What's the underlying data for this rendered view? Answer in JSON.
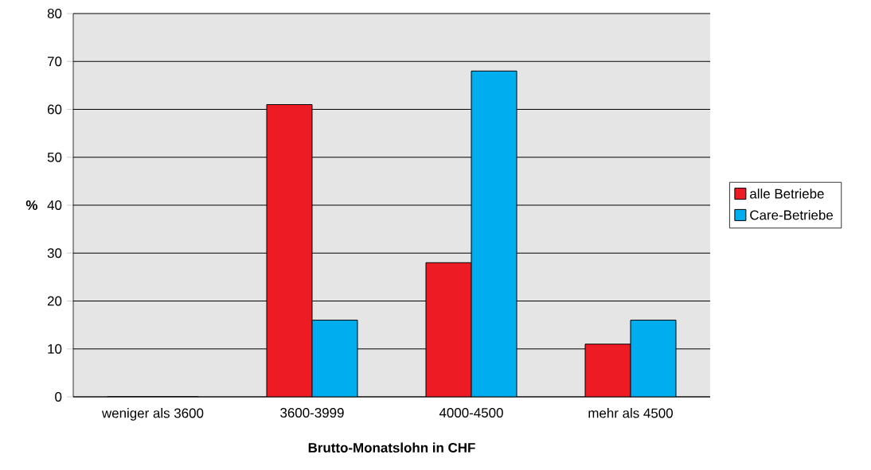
{
  "chart_data": {
    "type": "bar",
    "xlabel": "Brutto-Monatslohn in CHF",
    "ylabel": "%",
    "categories": [
      "weniger als 3600",
      "3600-3999",
      "4000-4500",
      "mehr als 4500"
    ],
    "series": [
      {
        "name": "alle Betriebe",
        "color": "#ed1c24",
        "values": [
          0,
          61,
          28,
          11
        ]
      },
      {
        "name": "Care-Betriebe",
        "color": "#00aeef",
        "values": [
          0,
          16,
          68,
          16
        ]
      }
    ],
    "ylim": [
      0,
      80
    ],
    "yticks": [
      0,
      10,
      20,
      30,
      40,
      50,
      60,
      70,
      80
    ],
    "grid": "y",
    "legend": "right"
  }
}
